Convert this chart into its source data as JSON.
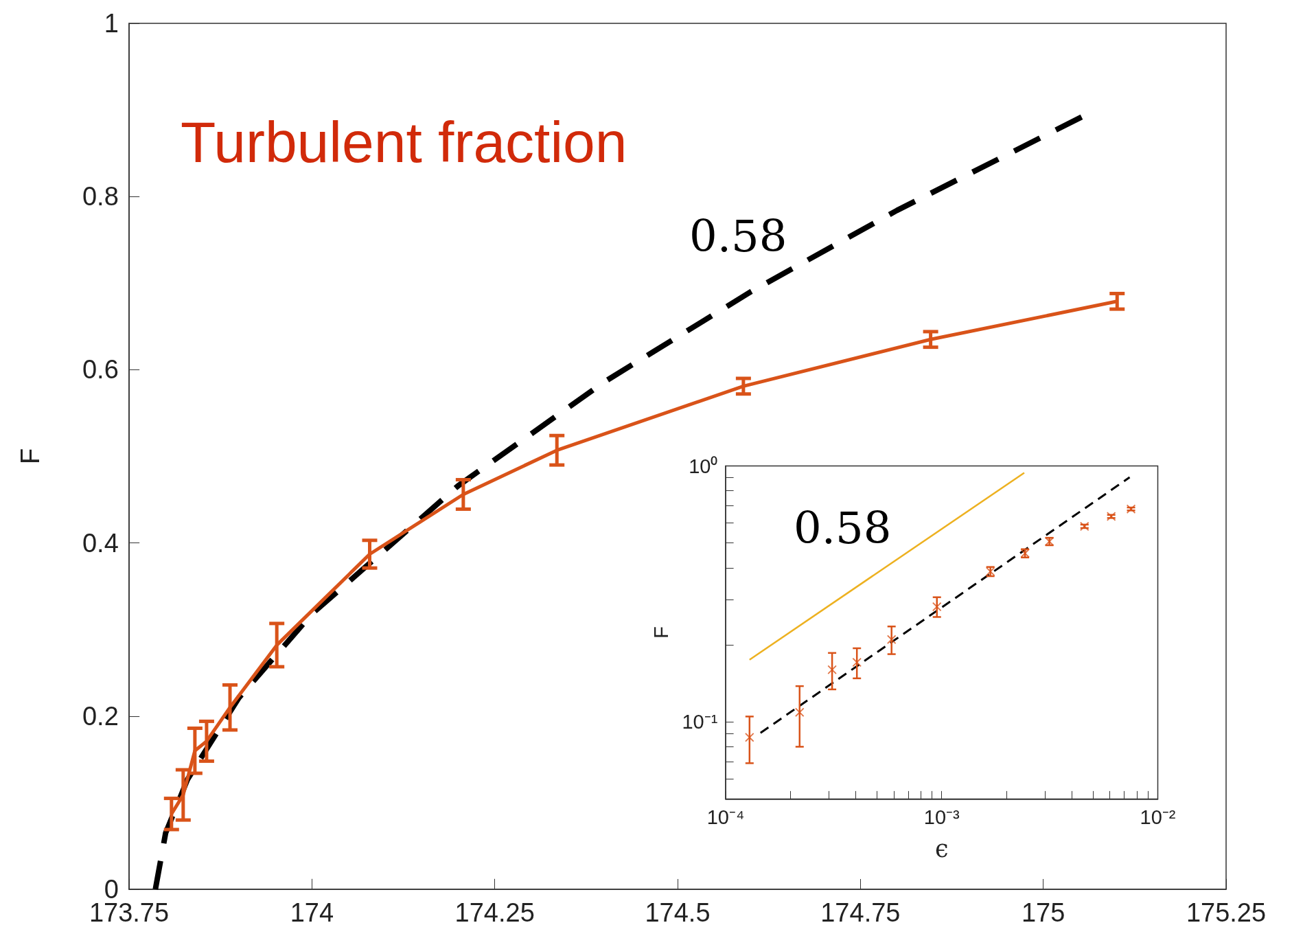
{
  "chart_data": [
    {
      "type": "line",
      "title": "Turbulent fraction",
      "ylabel": "F",
      "marker": "none",
      "annotations": [
        "0.58"
      ],
      "x": [
        173.808,
        173.824,
        173.84,
        173.856,
        173.888,
        173.952,
        174.079,
        174.207,
        174.335,
        174.59,
        174.846,
        175.101
      ],
      "xlim": [
        173.75,
        175.25
      ],
      "xticks": [
        173.75,
        174,
        174.25,
        174.5,
        174.75,
        175,
        175.25
      ],
      "ylim": [
        0,
        1
      ],
      "yticks": [
        0,
        0.2,
        0.4,
        0.6,
        0.8,
        1
      ],
      "series": [
        {
          "color": "#d95319",
          "values": [
            0.087,
            0.109,
            0.16,
            0.171,
            0.21,
            0.282,
            0.387,
            0.456,
            0.507,
            0.581,
            0.635,
            0.679
          ],
          "errors": [
            0.018,
            0.029,
            0.026,
            0.023,
            0.026,
            0.025,
            0.016,
            0.017,
            0.017,
            0.009,
            0.009,
            0.009
          ]
        },
        {
          "type": "line",
          "color": "#000000",
          "line_style": "dashed",
          "x": [
            173.786,
            173.8,
            173.83,
            173.9,
            174.0,
            174.2,
            174.4,
            174.6,
            174.8,
            175.055
          ],
          "values": [
            0,
            0.065,
            0.127,
            0.221,
            0.318,
            0.466,
            0.586,
            0.69,
            0.784,
            0.893
          ]
        }
      ]
    },
    {
      "type": "scatter",
      "xlabel": "ϵ",
      "ylabel": "F",
      "log": "xy",
      "marker": "cross",
      "annotations": [
        "0.58"
      ],
      "xlim": [
        0.0001,
        0.01
      ],
      "xticks": [
        {
          "value": 0.0001,
          "label": "10⁻⁴"
        },
        {
          "value": 0.0002,
          "label": null
        },
        {
          "value": 0.0003,
          "label": null
        },
        {
          "value": 0.0004,
          "label": null
        },
        {
          "value": 0.0005,
          "label": null
        },
        {
          "value": 0.0006,
          "label": null
        },
        {
          "value": 0.0007,
          "label": null
        },
        {
          "value": 0.0008,
          "label": null
        },
        {
          "value": 0.0009,
          "label": null
        },
        {
          "value": 0.001,
          "label": "10⁻³"
        },
        {
          "value": 0.002,
          "label": null
        },
        {
          "value": 0.003,
          "label": null
        },
        {
          "value": 0.004,
          "label": null
        },
        {
          "value": 0.005,
          "label": null
        },
        {
          "value": 0.006,
          "label": null
        },
        {
          "value": 0.007,
          "label": null
        },
        {
          "value": 0.008,
          "label": null
        },
        {
          "value": 0.009,
          "label": null
        },
        {
          "value": 0.01,
          "label": "10⁻²"
        }
      ],
      "ylim": [
        0.05,
        1
      ],
      "yticks": [
        {
          "value": 0.05,
          "label": null
        },
        {
          "value": 0.06,
          "label": null
        },
        {
          "value": 0.07,
          "label": null
        },
        {
          "value": 0.08,
          "label": null
        },
        {
          "value": 0.09,
          "label": null
        },
        {
          "value": 0.1,
          "label": "10⁻¹"
        },
        {
          "value": 0.2,
          "label": null
        },
        {
          "value": 0.3,
          "label": null
        },
        {
          "value": 0.4,
          "label": null
        },
        {
          "value": 0.5,
          "label": null
        },
        {
          "value": 0.6,
          "label": null
        },
        {
          "value": 0.7,
          "label": null
        },
        {
          "value": 0.8,
          "label": null
        },
        {
          "value": 0.9,
          "label": null
        },
        {
          "value": 1,
          "label": "10⁰"
        }
      ],
      "series": [
        {
          "color": "#d95319",
          "x": [
            0.000129,
            0.00022,
            0.000311,
            0.000405,
            0.000586,
            0.00095,
            0.00168,
            0.00243,
            0.00315,
            0.00458,
            0.00609,
            0.00752
          ],
          "values": [
            0.087,
            0.109,
            0.16,
            0.171,
            0.21,
            0.282,
            0.387,
            0.456,
            0.507,
            0.581,
            0.635,
            0.679
          ],
          "errors": [
            0.018,
            0.029,
            0.026,
            0.023,
            0.026,
            0.025,
            0.016,
            0.017,
            0.017,
            0.009,
            0.009,
            0.009
          ]
        },
        {
          "type": "line",
          "color": "#000000",
          "line_style": "dashed",
          "marker": "none",
          "x": [
            0.000145,
            0.00741
          ],
          "values": [
            0.0906,
            0.903
          ]
        },
        {
          "type": "line",
          "color": "#edb120",
          "marker": "none",
          "x": [
            0.000129,
            0.00241
          ],
          "values": [
            0.175,
            0.94
          ]
        }
      ]
    }
  ]
}
